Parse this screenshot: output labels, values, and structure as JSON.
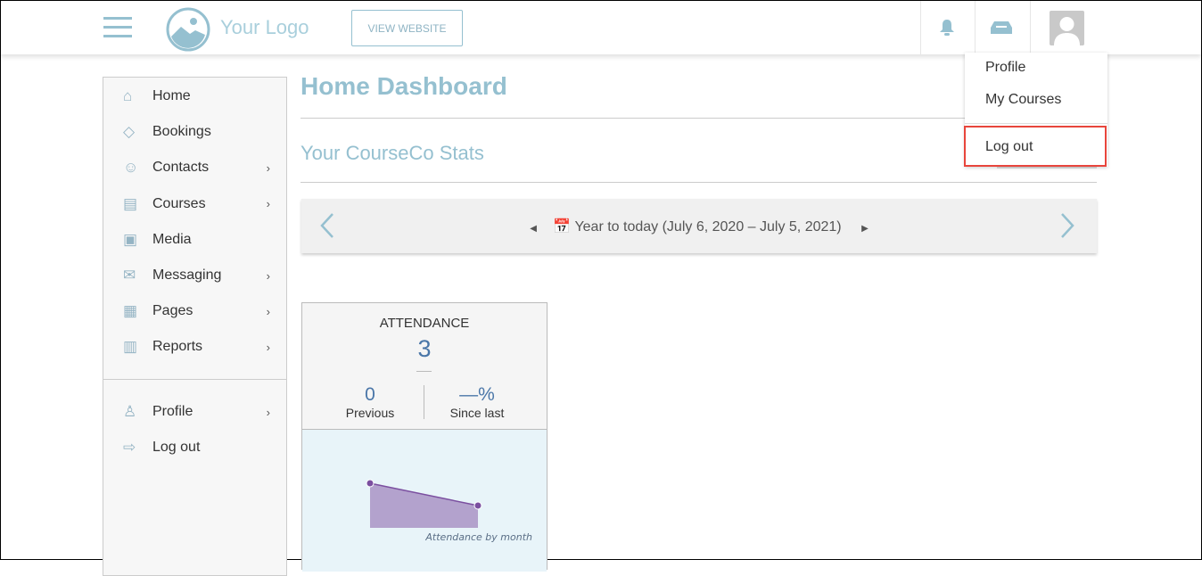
{
  "header": {
    "logo_text": "Your Logo",
    "view_website": "VIEW WEBSITE"
  },
  "user_menu": {
    "items": [
      "Profile",
      "My Courses",
      "Log out"
    ],
    "highlighted": "Log out"
  },
  "sidebar": {
    "items": [
      {
        "label": "Home",
        "icon": "home-icon",
        "chevron": false
      },
      {
        "label": "Bookings",
        "icon": "tag-icon",
        "chevron": false
      },
      {
        "label": "Contacts",
        "icon": "people-icon",
        "chevron": true
      },
      {
        "label": "Courses",
        "icon": "courses-icon",
        "chevron": true
      },
      {
        "label": "Media",
        "icon": "media-icon",
        "chevron": false
      },
      {
        "label": "Messaging",
        "icon": "chat-icon",
        "chevron": true
      },
      {
        "label": "Pages",
        "icon": "pages-icon",
        "chevron": true
      },
      {
        "label": "Reports",
        "icon": "chart-icon",
        "chevron": true
      }
    ],
    "bottom": [
      {
        "label": "Profile",
        "icon": "user-icon",
        "chevron": true
      },
      {
        "label": "Log out",
        "icon": "logout-icon",
        "chevron": false
      }
    ]
  },
  "main": {
    "title": "Home Dashboard",
    "subtitle": "Your CourseCo Stats",
    "date_range": "Year to today (July 6, 2020 – July 5, 2021)"
  },
  "card": {
    "title": "ATTENDANCE",
    "value": "3",
    "previous_value": "0",
    "previous_label": "Previous",
    "change_value": "—%",
    "change_label": "Since last",
    "chart_caption": "Attendance by month"
  },
  "chart_data": {
    "type": "area",
    "values": [
      2,
      1
    ],
    "color": "#7b4fa0"
  },
  "colors": {
    "accent": "#95c0d0",
    "highlight": "#e8453c"
  }
}
